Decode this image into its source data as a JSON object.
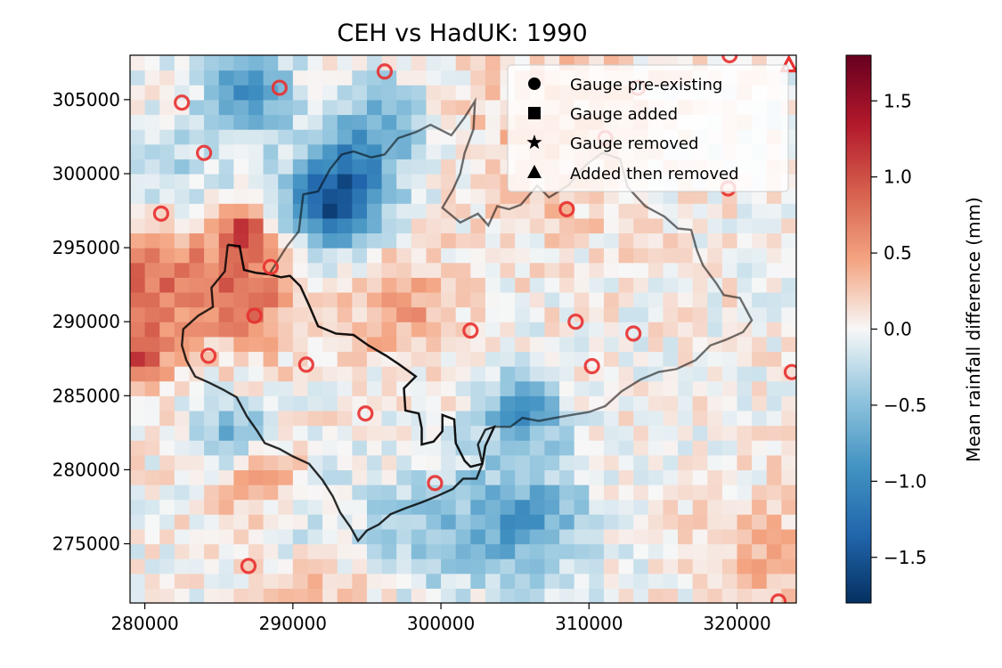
{
  "chart_data": {
    "type": "heatmap",
    "title": "CEH vs HadUK: 1990",
    "x_ticks": [
      280000,
      290000,
      300000,
      310000,
      320000
    ],
    "y_ticks": [
      275000,
      280000,
      285000,
      290000,
      295000,
      300000,
      305000
    ],
    "xlim": [
      279000,
      324000
    ],
    "ylim": [
      271000,
      308000
    ],
    "grid": false,
    "colorbar": {
      "label": "Mean rainfall difference (mm)",
      "range": [
        -1.8,
        1.8
      ],
      "ticks": [
        -1.5,
        -1.0,
        -0.5,
        0.0,
        0.5,
        1.0,
        1.5
      ],
      "tick_labels": [
        "−1.5",
        "−1.0",
        "−0.5",
        "0.0",
        "0.5",
        "1.0",
        "1.5"
      ],
      "colormap": "RdBu_r"
    },
    "legend": {
      "placement": "top-right",
      "entries": [
        {
          "label": "Gauge pre-existing",
          "marker": "circle"
        },
        {
          "label": "Gauge added",
          "marker": "square"
        },
        {
          "label": "Gauge removed",
          "marker": "star"
        },
        {
          "label": "Added then removed",
          "marker": "triangle"
        }
      ]
    },
    "gauges_preexisting": [
      [
        282500,
        304800
      ],
      [
        289100,
        305800
      ],
      [
        296200,
        306900
      ],
      [
        284000,
        301400
      ],
      [
        281100,
        297300
      ],
      [
        288500,
        293700
      ],
      [
        287400,
        290400
      ],
      [
        284300,
        287700
      ],
      [
        290900,
        287100
      ],
      [
        294900,
        283800
      ],
      [
        299600,
        279100
      ],
      [
        287000,
        273500
      ],
      [
        302000,
        289400
      ],
      [
        309100,
        290000
      ],
      [
        310200,
        287000
      ],
      [
        313000,
        289200
      ],
      [
        308500,
        297600
      ],
      [
        319400,
        299000
      ],
      [
        319500,
        308000
      ],
      [
        323700,
        286600
      ],
      [
        322800,
        271100
      ],
      [
        311100,
        302400
      ],
      [
        313300,
        305800
      ]
    ],
    "gauges_added_then_removed": [
      [
        323500,
        307300
      ]
    ],
    "catchment_outer": [
      [
        285600,
        295200
      ],
      [
        286400,
        295100
      ],
      [
        286700,
        293500
      ],
      [
        287500,
        293300
      ],
      [
        288400,
        293200
      ],
      [
        289600,
        295100
      ],
      [
        290400,
        296100
      ],
      [
        290700,
        298600
      ],
      [
        291700,
        298800
      ],
      [
        292500,
        300300
      ],
      [
        293300,
        301300
      ],
      [
        294100,
        301500
      ],
      [
        295300,
        301100
      ],
      [
        296200,
        301300
      ],
      [
        297100,
        302400
      ],
      [
        298300,
        302800
      ],
      [
        299300,
        303300
      ],
      [
        300700,
        302600
      ],
      [
        301600,
        303800
      ],
      [
        302300,
        304900
      ],
      [
        302200,
        303000
      ],
      [
        301600,
        301400
      ],
      [
        301300,
        300000
      ],
      [
        300800,
        298900
      ],
      [
        300100,
        297700
      ],
      [
        301300,
        296700
      ],
      [
        302500,
        297300
      ],
      [
        303200,
        296500
      ],
      [
        303800,
        297800
      ],
      [
        304600,
        297600
      ],
      [
        305400,
        297900
      ],
      [
        306500,
        299200
      ],
      [
        307300,
        298400
      ],
      [
        308600,
        299200
      ],
      [
        309800,
        300600
      ],
      [
        310900,
        301400
      ],
      [
        312100,
        301000
      ],
      [
        312600,
        299100
      ],
      [
        313800,
        297800
      ],
      [
        315100,
        297100
      ],
      [
        316000,
        296300
      ],
      [
        316900,
        296200
      ],
      [
        317300,
        294800
      ],
      [
        317700,
        293800
      ],
      [
        318600,
        292600
      ],
      [
        319100,
        291800
      ],
      [
        320200,
        291600
      ],
      [
        321000,
        290100
      ],
      [
        320400,
        289300
      ],
      [
        319300,
        288800
      ],
      [
        318200,
        288400
      ],
      [
        317200,
        287400
      ],
      [
        315900,
        286800
      ],
      [
        314700,
        286600
      ],
      [
        313500,
        286100
      ],
      [
        312200,
        285300
      ],
      [
        311100,
        284300
      ],
      [
        310000,
        283900
      ],
      [
        308800,
        283700
      ],
      [
        307700,
        283500
      ],
      [
        306600,
        283300
      ],
      [
        305500,
        283500
      ],
      [
        304700,
        282900
      ],
      [
        303600,
        282900
      ],
      [
        303000,
        281600
      ],
      [
        302800,
        280400
      ],
      [
        302000,
        280200
      ],
      [
        301600,
        280600
      ],
      [
        301000,
        281800
      ],
      [
        300900,
        283400
      ],
      [
        300100,
        283700
      ],
      [
        300100,
        282600
      ],
      [
        299500,
        281900
      ],
      [
        298700,
        281700
      ],
      [
        298700,
        282800
      ],
      [
        298500,
        283800
      ],
      [
        297600,
        284000
      ],
      [
        297500,
        285500
      ],
      [
        298300,
        286300
      ],
      [
        297200,
        287100
      ],
      [
        296300,
        287700
      ],
      [
        295100,
        288400
      ],
      [
        294100,
        289100
      ],
      [
        292900,
        289200
      ],
      [
        291700,
        289700
      ],
      [
        291100,
        291100
      ],
      [
        290500,
        292400
      ],
      [
        289800,
        293100
      ],
      [
        289200,
        293000
      ],
      [
        288400,
        293200
      ]
    ],
    "catchment_inner": [
      [
        285600,
        295200
      ],
      [
        285400,
        293400
      ],
      [
        284500,
        292300
      ],
      [
        284600,
        291000
      ],
      [
        283600,
        290400
      ],
      [
        282600,
        289500
      ],
      [
        282500,
        288400
      ],
      [
        282800,
        287400
      ],
      [
        283400,
        286300
      ],
      [
        284300,
        285900
      ],
      [
        285300,
        285400
      ],
      [
        286200,
        284900
      ],
      [
        286900,
        283600
      ],
      [
        287600,
        282600
      ],
      [
        288100,
        281800
      ],
      [
        289100,
        281400
      ],
      [
        290000,
        280900
      ],
      [
        291100,
        280400
      ],
      [
        292000,
        279300
      ],
      [
        292700,
        278200
      ],
      [
        293200,
        277100
      ],
      [
        293900,
        276100
      ],
      [
        294400,
        275200
      ],
      [
        295000,
        275900
      ],
      [
        295800,
        276300
      ],
      [
        296600,
        277000
      ],
      [
        297600,
        277400
      ],
      [
        298700,
        277800
      ],
      [
        299700,
        278200
      ],
      [
        300800,
        278700
      ],
      [
        301500,
        279400
      ],
      [
        302400,
        279400
      ],
      [
        302800,
        280400
      ],
      [
        302500,
        281700
      ],
      [
        303000,
        282700
      ],
      [
        303600,
        282900
      ],
      [
        303000,
        281600
      ],
      [
        302800,
        280400
      ],
      [
        302000,
        280200
      ],
      [
        301600,
        280600
      ],
      [
        301000,
        281800
      ],
      [
        300900,
        283400
      ],
      [
        300100,
        283700
      ],
      [
        300100,
        282600
      ],
      [
        299500,
        281900
      ],
      [
        298700,
        281700
      ],
      [
        298700,
        282800
      ],
      [
        298500,
        283800
      ],
      [
        297600,
        284000
      ],
      [
        297500,
        285500
      ],
      [
        298300,
        286300
      ],
      [
        297200,
        287100
      ],
      [
        296300,
        287700
      ],
      [
        295100,
        288400
      ],
      [
        294100,
        289100
      ],
      [
        292900,
        289200
      ],
      [
        291700,
        289700
      ],
      [
        291100,
        291100
      ],
      [
        290500,
        292400
      ],
      [
        289800,
        293100
      ],
      [
        289200,
        293000
      ],
      [
        288400,
        293200
      ],
      [
        287500,
        293300
      ],
      [
        286700,
        293500
      ],
      [
        286400,
        295100
      ],
      [
        285600,
        295200
      ]
    ],
    "anomaly_field": {
      "cell_size": 1000,
      "background_mean": 0.02,
      "hotspots": [
        [
          280500,
          293500,
          0.8,
          3000
        ],
        [
          287000,
          292000,
          0.7,
          2500
        ],
        [
          286500,
          296200,
          0.9,
          1200
        ],
        [
          297300,
          291000,
          0.5,
          2500
        ],
        [
          287500,
          279800,
          0.7,
          2000
        ],
        [
          279500,
          287800,
          0.9,
          1500
        ],
        [
          284500,
          284500,
          0.3,
          3000
        ],
        [
          308000,
          303000,
          0.3,
          5000
        ],
        [
          292000,
          271500,
          0.3,
          3000
        ],
        [
          322000,
          274500,
          0.3,
          3000
        ]
      ],
      "coldspots": [
        [
          293500,
          299500,
          -1.0,
          2500
        ],
        [
          292400,
          297300,
          -0.9,
          1800
        ],
        [
          287000,
          305700,
          -0.9,
          2000
        ],
        [
          286000,
          282200,
          -1.0,
          2000
        ],
        [
          305500,
          276500,
          -0.8,
          3000
        ],
        [
          305500,
          284000,
          -0.8,
          2000
        ],
        [
          296000,
          303500,
          -0.5,
          2500
        ],
        [
          281500,
          300000,
          -0.4,
          3000
        ],
        [
          298500,
          276000,
          -0.4,
          3000
        ],
        [
          290500,
          276500,
          -0.3,
          2500
        ],
        [
          283000,
          285700,
          -0.2,
          2500
        ]
      ]
    }
  }
}
